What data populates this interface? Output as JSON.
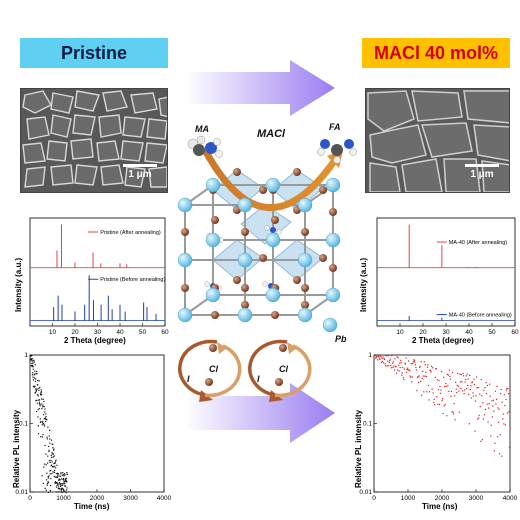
{
  "left": {
    "banner": "Pristine",
    "sem_scale": "1 μm"
  },
  "right": {
    "banner": "MACl 40 mol%",
    "sem_scale": "1 μm"
  },
  "center": {
    "additive_label": "MACl",
    "ma_label": "MA",
    "fa_label": "FA",
    "pb_label": "Pb",
    "cl_label": "Cl",
    "i_label": "I"
  },
  "colors": {
    "pristine_xrd_after": "#e8423f",
    "pristine_xrd_before": "#1f3fb5",
    "macl_xrd_after": "#e8423f",
    "macl_xrd_before": "#1f3fb5",
    "pl_pristine": "#111111",
    "pl_macl": "#e21b1b",
    "arrow_fill": "#b7a0f0"
  },
  "chart_data": [
    {
      "type": "line",
      "name": "xrd-pristine",
      "xlabel": "2 Theta (degree)",
      "ylabel": "Intensity (a.u.)",
      "xlim": [
        0,
        60
      ],
      "xticks": [
        "10",
        "20",
        "30",
        "40",
        "50",
        "60"
      ],
      "series": [
        {
          "name": "Pristine (After annealing)",
          "peaks": [
            [
              12.0,
              0.4
            ],
            [
              14.0,
              1.0
            ],
            [
              20.0,
              0.12
            ],
            [
              28.0,
              0.35
            ],
            [
              31.5,
              0.1
            ],
            [
              40.0,
              0.1
            ],
            [
              43.0,
              0.08
            ]
          ]
        },
        {
          "name": "Pristine (Before annealing)",
          "peaks": [
            [
              10.5,
              0.3
            ],
            [
              12.5,
              0.55
            ],
            [
              14.2,
              0.35
            ],
            [
              20.0,
              0.2
            ],
            [
              24.3,
              0.35
            ],
            [
              26.3,
              1.0
            ],
            [
              28.2,
              0.45
            ],
            [
              31.6,
              0.35
            ],
            [
              34.8,
              0.55
            ],
            [
              36.5,
              0.25
            ],
            [
              40.0,
              0.35
            ],
            [
              42.3,
              0.2
            ],
            [
              50.5,
              0.4
            ],
            [
              52.0,
              0.3
            ],
            [
              56.0,
              0.15
            ]
          ]
        }
      ]
    },
    {
      "type": "line",
      "name": "xrd-macl",
      "xlabel": "2 Theta (degree)",
      "ylabel": "Intensity (a.u.)",
      "xlim": [
        0,
        60
      ],
      "xticks": [
        "10",
        "20",
        "30",
        "40",
        "50",
        "60"
      ],
      "series": [
        {
          "name": "MA-40 (After annealing)",
          "peaks": [
            [
              14.0,
              1.0
            ],
            [
              28.2,
              0.52
            ],
            [
              40.0,
              0.02
            ],
            [
              43.0,
              0.02
            ]
          ]
        },
        {
          "name": "MA-40 (Before annealing)",
          "peaks": [
            [
              14.0,
              0.12
            ],
            [
              28.2,
              0.08
            ]
          ]
        }
      ]
    },
    {
      "type": "scatter",
      "name": "trpl-pristine",
      "xlabel": "Time (ns)",
      "ylabel": "Relative PL intensity",
      "xlim": [
        0,
        4000
      ],
      "ylim": [
        0.01,
        1
      ],
      "yscale": "log",
      "xticks": [
        "0",
        "1000",
        "2000",
        "3000",
        "4000"
      ],
      "yticks": [
        "0.01",
        "0.1",
        "1"
      ],
      "decay_tau_ns": 180,
      "end_ns": 1100
    },
    {
      "type": "scatter",
      "name": "trpl-macl",
      "xlabel": "Time (ns)",
      "ylabel": "Relative PL intensity",
      "xlim": [
        0,
        4000
      ],
      "ylim": [
        0.01,
        1
      ],
      "yscale": "log",
      "xticks": [
        "0",
        "1000",
        "2000",
        "3000",
        "4000"
      ],
      "yticks": [
        "0.01",
        "0.1",
        "1"
      ],
      "decay_tau_ns": 2300,
      "end_ns": 4000
    }
  ]
}
